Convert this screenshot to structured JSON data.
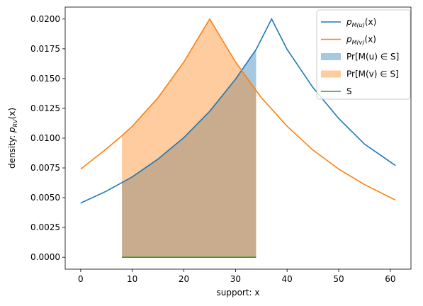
{
  "chart_data": {
    "type": "line",
    "title": "",
    "xlabel": "support: x",
    "ylabel_parts": {
      "main": "density: ",
      "p": "p",
      "sub": "RV",
      "arg": "(x)"
    },
    "xlim": [
      -3,
      64
    ],
    "ylim": [
      -0.001,
      0.021
    ],
    "xticks": [
      0,
      10,
      20,
      30,
      40,
      50,
      60
    ],
    "xtick_labels": [
      "0",
      "10",
      "20",
      "30",
      "40",
      "50",
      "60"
    ],
    "yticks": [
      0,
      0.0025,
      0.005,
      0.0075,
      0.01,
      0.0125,
      0.015,
      0.0175,
      0.02
    ],
    "ytick_labels": [
      "0.0000",
      "0.0025",
      "0.0050",
      "0.0075",
      "0.0100",
      "0.0125",
      "0.0150",
      "0.0175",
      "0.0200"
    ],
    "grid": false,
    "legend_position": "top-right",
    "series": [
      {
        "type": "line",
        "color": "#1f77b4",
        "legend": {
          "p": "p",
          "sub": "M(u)",
          "arg": "(x)"
        },
        "x": [
          0,
          5,
          10,
          15,
          20,
          25,
          30,
          34,
          37,
          40,
          45,
          50,
          55,
          61
        ],
        "y": [
          0.00455,
          0.00555,
          0.00675,
          0.00825,
          0.01005,
          0.01225,
          0.01495,
          0.01745,
          0.02,
          0.01745,
          0.01425,
          0.01165,
          0.0095,
          0.0077
        ]
      },
      {
        "type": "line",
        "color": "#ff7f0e",
        "legend": {
          "p": "p",
          "sub": "M(v)",
          "arg": "(x)"
        },
        "x": [
          0,
          5,
          8,
          10,
          15,
          20,
          25,
          30,
          34,
          35,
          40,
          45,
          50,
          55,
          61
        ],
        "y": [
          0.0074,
          0.0091,
          0.0102,
          0.011,
          0.0134,
          0.0164,
          0.02,
          0.0164,
          0.014,
          0.0134,
          0.011,
          0.009,
          0.0074,
          0.0061,
          0.0048
        ]
      },
      {
        "type": "area",
        "color": "#1f77b4",
        "opacity": 0.4,
        "legend_text": "Pr[M(u) ∈ S]",
        "x": [
          8,
          10,
          15,
          20,
          25,
          30,
          34
        ],
        "y": [
          0.0063,
          0.00675,
          0.00825,
          0.01005,
          0.01225,
          0.01495,
          0.01745
        ]
      },
      {
        "type": "area",
        "color": "#ff7f0e",
        "opacity": 0.4,
        "legend_text": "Pr[M(v) ∈ S]",
        "x": [
          8,
          10,
          15,
          20,
          25,
          30,
          34
        ],
        "y": [
          0.0102,
          0.011,
          0.0134,
          0.0164,
          0.02,
          0.0164,
          0.014
        ]
      },
      {
        "type": "line",
        "color": "#2ca02c",
        "legend_text": "S",
        "x": [
          8,
          34
        ],
        "y": [
          0,
          0
        ]
      }
    ]
  }
}
